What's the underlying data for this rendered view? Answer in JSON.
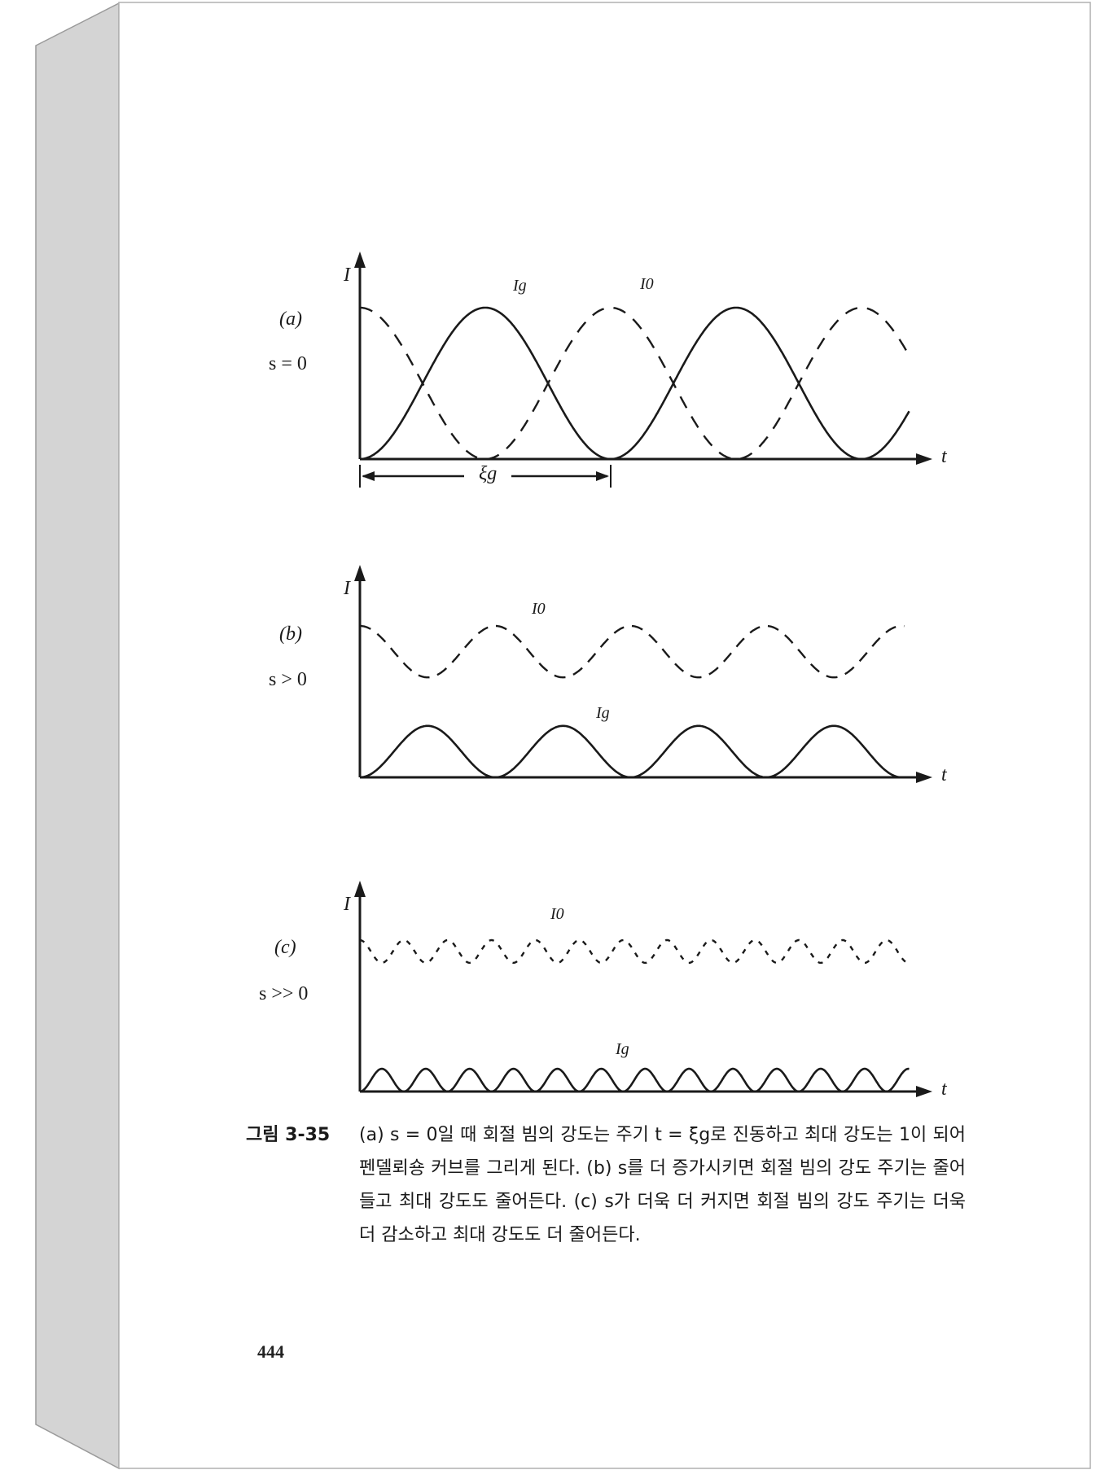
{
  "page": {
    "page_number": "444",
    "colors": {
      "paper": "#ffffff",
      "spine": "#d4d4d4",
      "ink": "#1a1a1a"
    }
  },
  "figure": {
    "axis_y_label": "I",
    "axis_x_label": "t",
    "extinction_label": "ξg",
    "panels": [
      {
        "label": "(a)",
        "condition": "s = 0",
        "i0_label": "I0",
        "ig_label": "Ig",
        "ig_max": 1.0,
        "period_xi": 1.0,
        "t_max_xi": 2.19
      },
      {
        "label": "(b)",
        "condition": "s > 0",
        "i0_label": "I0",
        "ig_label": "Ig",
        "ig_max": 0.34,
        "period_xi": 0.54,
        "t_max_xi": 2.17
      },
      {
        "label": "(c)",
        "condition": "s >> 0",
        "i0_label": "I0",
        "ig_label": "Ig",
        "ig_max": 0.15,
        "period_xi": 0.175,
        "t_max_xi": 2.19
      }
    ],
    "curve_styles": {
      "Ig": "solid",
      "I0": "dashed"
    }
  },
  "caption": {
    "label": "그림 3-35",
    "text": "(a) s = 0일 때 회절 빔의 강도는 주기 t = ξg로 진동하고 최대 강도는 1이 되어 펜델뢰숑 커브를 그리게 된다. (b) s를 더 증가시키면 회절 빔의 강도 주기는 줄어들고 최대 강도도 줄어든다. (c) s가 더욱 더 커지면 회절 빔의 강도 주기는 더욱 더 감소하고 최대 강도도 더 줄어든다."
  }
}
